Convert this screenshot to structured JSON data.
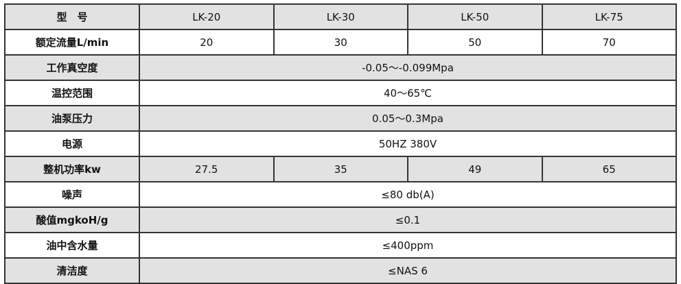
{
  "header": {
    "label": "型　号",
    "models": [
      "LK-20",
      "LK-30",
      "LK-50",
      "LK-75"
    ]
  },
  "rows": [
    {
      "label": "额定流量L/min",
      "values": [
        "20",
        "30",
        "50",
        "70"
      ]
    },
    {
      "label": "工作真空度",
      "value": "-0.05～-0.099Mpa"
    },
    {
      "label": "温控范围",
      "value": "40～65℃"
    },
    {
      "label": "油泵压力",
      "value": "0.05～0.3Mpa"
    },
    {
      "label": "电源",
      "value": "50HZ 380V"
    },
    {
      "label": "整机功率kw",
      "values": [
        "27.5",
        "35",
        "49",
        "65"
      ]
    },
    {
      "label": "噪声",
      "value": "≤80 db(A)"
    },
    {
      "label": "酸值mgkoH/g",
      "value": "≤0.1"
    },
    {
      "label": "油中含水量",
      "value": "≤400ppm"
    },
    {
      "label": "清洁度",
      "value": "≤NAS 6"
    }
  ],
  "colors": {
    "shaded_row": "#e2e2e2",
    "border": "#333333"
  }
}
